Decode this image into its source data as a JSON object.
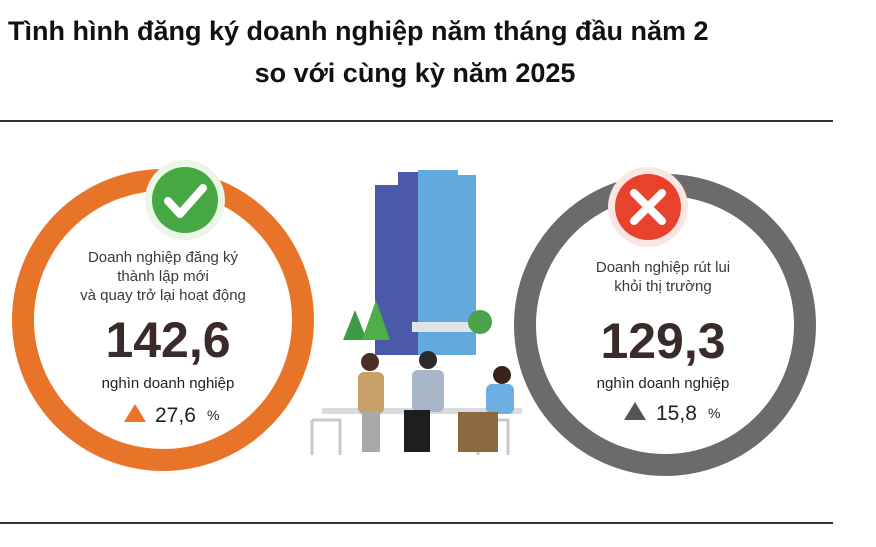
{
  "header": {
    "title_lines": [
      "Tình hình đăng ký doanh nghiệp năm tháng đầu năm 2",
      "so với cùng kỳ năm 2025"
    ]
  },
  "panels": [
    {
      "label_lines": [
        "Doanh nghiệp đăng ký",
        "thành lập mới",
        "và quay trở lại hoạt động"
      ],
      "value": "142,6",
      "unit": "nghìn doanh nghiệp",
      "change": "27,6",
      "change_unit": "%"
    },
    {
      "label_lines": [
        "Doanh nghiệp rút lui",
        "khỏi thị trường"
      ],
      "value": "129,3",
      "unit": "nghìn doanh nghiệp",
      "change": "15,8",
      "change_unit": "%"
    }
  ]
}
